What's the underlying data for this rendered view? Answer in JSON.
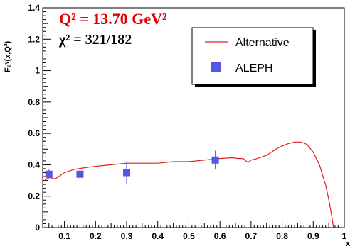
{
  "chart_data": {
    "type": "line",
    "title_line1": {
      "text": "Q² = 13.70 GeV²",
      "color": "#e00000"
    },
    "title_line2": {
      "text": "χ² = 321/182",
      "color": "#000000"
    },
    "xlabel": "x",
    "ylabel": "F₂ᵞ(x,Q²)",
    "xlim": [
      0.03,
      1.0
    ],
    "ylim": [
      0,
      1.4
    ],
    "x_ticks": [
      {
        "v": 0.1,
        "label": "0.1"
      },
      {
        "v": 0.2,
        "label": "0.2"
      },
      {
        "v": 0.3,
        "label": "0.3"
      },
      {
        "v": 0.4,
        "label": "0.4"
      },
      {
        "v": 0.5,
        "label": "0.5"
      },
      {
        "v": 0.6,
        "label": "0.6"
      },
      {
        "v": 0.7,
        "label": "0.7"
      },
      {
        "v": 0.8,
        "label": "0.8"
      },
      {
        "v": 0.9,
        "label": "0.9"
      },
      {
        "v": 1.0,
        "label": "1"
      }
    ],
    "y_ticks": [
      {
        "v": 0,
        "label": "0"
      },
      {
        "v": 0.2,
        "label": "0.2"
      },
      {
        "v": 0.4,
        "label": "0.4"
      },
      {
        "v": 0.6,
        "label": "0.6"
      },
      {
        "v": 0.8,
        "label": "0.8"
      },
      {
        "v": 1.0,
        "label": "1"
      },
      {
        "v": 1.2,
        "label": "1.2"
      },
      {
        "v": 1.4,
        "label": "1.4"
      }
    ],
    "grid": false,
    "legend_position": "top-right",
    "series": [
      {
        "name": "Alternative",
        "kind": "line",
        "color": "#e02020",
        "x": [
          0.035,
          0.05,
          0.07,
          0.1,
          0.13,
          0.16,
          0.2,
          0.25,
          0.3,
          0.35,
          0.4,
          0.45,
          0.5,
          0.55,
          0.6,
          0.64,
          0.66,
          0.675,
          0.68,
          0.69,
          0.7,
          0.72,
          0.75,
          0.78,
          0.8,
          0.82,
          0.84,
          0.86,
          0.88,
          0.9,
          0.92,
          0.94,
          0.95,
          0.96,
          0.965
        ],
        "y": [
          0.3,
          0.32,
          0.31,
          0.35,
          0.37,
          0.38,
          0.39,
          0.4,
          0.41,
          0.41,
          0.41,
          0.42,
          0.42,
          0.43,
          0.44,
          0.445,
          0.44,
          0.44,
          0.43,
          0.415,
          0.43,
          0.44,
          0.46,
          0.5,
          0.52,
          0.535,
          0.545,
          0.545,
          0.53,
          0.48,
          0.4,
          0.27,
          0.18,
          0.07,
          0.0
        ]
      },
      {
        "name": "ALEPH",
        "kind": "points",
        "color": "#5555e6",
        "points": [
          {
            "x": 0.05,
            "y": 0.34,
            "yerr": 0.03
          },
          {
            "x": 0.15,
            "y": 0.34,
            "yerr": 0.045
          },
          {
            "x": 0.3,
            "y": 0.35,
            "yerr": 0.07
          },
          {
            "x": 0.585,
            "y": 0.43,
            "yerr": 0.06
          }
        ]
      }
    ]
  }
}
